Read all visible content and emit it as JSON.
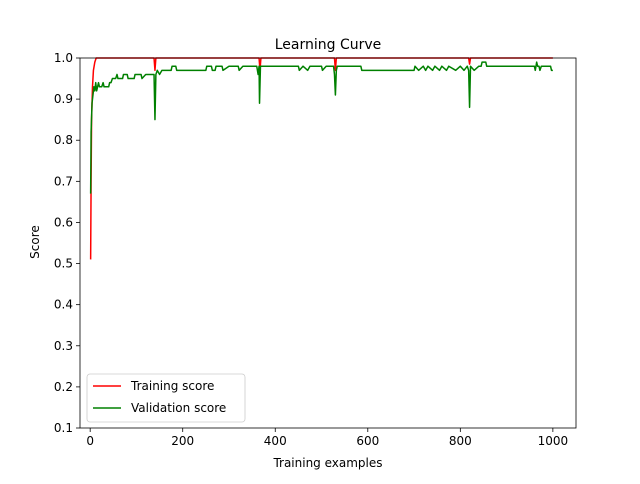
{
  "chart_data": {
    "type": "line",
    "title": "Learning Curve",
    "xlabel": "Training examples",
    "ylabel": "Score",
    "xlim": [
      -22,
      1050
    ],
    "ylim": [
      0.1,
      1.0
    ],
    "xticks": [
      0,
      200,
      400,
      600,
      800,
      1000
    ],
    "yticks": [
      0.1,
      0.2,
      0.3,
      0.4,
      0.5,
      0.6,
      0.7,
      0.8,
      0.9,
      1.0
    ],
    "grid": false,
    "legend_position": "lower-left",
    "series": [
      {
        "name": "Training score",
        "color": "#ff0000",
        "points": [
          [
            1,
            0.51
          ],
          [
            2,
            0.7
          ],
          [
            3,
            0.85
          ],
          [
            5,
            0.93
          ],
          [
            7,
            0.97
          ],
          [
            10,
            0.99
          ],
          [
            13,
            1.0
          ],
          [
            138,
            1.0
          ],
          [
            140,
            0.97
          ],
          [
            142,
            1.0
          ],
          [
            365,
            1.0
          ],
          [
            367,
            0.97
          ],
          [
            369,
            1.0
          ],
          [
            528,
            1.0
          ],
          [
            530,
            0.97
          ],
          [
            532,
            1.0
          ],
          [
            818,
            1.0
          ],
          [
            820,
            0.985
          ],
          [
            822,
            1.0
          ],
          [
            1000,
            1.0
          ]
        ]
      },
      {
        "name": "Validation score",
        "color": "#008000",
        "points": [
          [
            1,
            0.67
          ],
          [
            2,
            0.82
          ],
          [
            4,
            0.89
          ],
          [
            6,
            0.91
          ],
          [
            8,
            0.93
          ],
          [
            10,
            0.92
          ],
          [
            12,
            0.94
          ],
          [
            14,
            0.92
          ],
          [
            16,
            0.93
          ],
          [
            18,
            0.94
          ],
          [
            20,
            0.93
          ],
          [
            25,
            0.93
          ],
          [
            28,
            0.94
          ],
          [
            30,
            0.93
          ],
          [
            40,
            0.93
          ],
          [
            42,
            0.94
          ],
          [
            45,
            0.94
          ],
          [
            48,
            0.95
          ],
          [
            55,
            0.95
          ],
          [
            58,
            0.96
          ],
          [
            60,
            0.95
          ],
          [
            70,
            0.95
          ],
          [
            72,
            0.96
          ],
          [
            80,
            0.96
          ],
          [
            82,
            0.95
          ],
          [
            95,
            0.95
          ],
          [
            97,
            0.96
          ],
          [
            110,
            0.96
          ],
          [
            112,
            0.95
          ],
          [
            120,
            0.96
          ],
          [
            135,
            0.96
          ],
          [
            138,
            0.96
          ],
          [
            140,
            0.85
          ],
          [
            142,
            0.96
          ],
          [
            145,
            0.97
          ],
          [
            150,
            0.96
          ],
          [
            155,
            0.97
          ],
          [
            175,
            0.97
          ],
          [
            177,
            0.98
          ],
          [
            185,
            0.98
          ],
          [
            187,
            0.97
          ],
          [
            250,
            0.97
          ],
          [
            252,
            0.98
          ],
          [
            262,
            0.98
          ],
          [
            264,
            0.97
          ],
          [
            270,
            0.97
          ],
          [
            272,
            0.98
          ],
          [
            285,
            0.98
          ],
          [
            287,
            0.97
          ],
          [
            300,
            0.98
          ],
          [
            320,
            0.98
          ],
          [
            322,
            0.97
          ],
          [
            330,
            0.98
          ],
          [
            360,
            0.98
          ],
          [
            363,
            0.96
          ],
          [
            365,
            0.98
          ],
          [
            366,
            0.89
          ],
          [
            368,
            0.98
          ],
          [
            380,
            0.98
          ],
          [
            450,
            0.98
          ],
          [
            452,
            0.97
          ],
          [
            460,
            0.98
          ],
          [
            470,
            0.97
          ],
          [
            475,
            0.98
          ],
          [
            500,
            0.98
          ],
          [
            502,
            0.97
          ],
          [
            510,
            0.98
          ],
          [
            526,
            0.98
          ],
          [
            528,
            0.96
          ],
          [
            530,
            0.91
          ],
          [
            532,
            0.97
          ],
          [
            534,
            0.98
          ],
          [
            585,
            0.98
          ],
          [
            587,
            0.97
          ],
          [
            700,
            0.97
          ],
          [
            702,
            0.98
          ],
          [
            710,
            0.97
          ],
          [
            720,
            0.98
          ],
          [
            725,
            0.97
          ],
          [
            730,
            0.98
          ],
          [
            740,
            0.97
          ],
          [
            745,
            0.98
          ],
          [
            755,
            0.97
          ],
          [
            760,
            0.98
          ],
          [
            770,
            0.97
          ],
          [
            775,
            0.98
          ],
          [
            790,
            0.97
          ],
          [
            800,
            0.98
          ],
          [
            808,
            0.97
          ],
          [
            815,
            0.98
          ],
          [
            818,
            0.97
          ],
          [
            820,
            0.88
          ],
          [
            822,
            0.98
          ],
          [
            830,
            0.97
          ],
          [
            840,
            0.98
          ],
          [
            845,
            0.98
          ],
          [
            847,
            0.99
          ],
          [
            855,
            0.99
          ],
          [
            857,
            0.98
          ],
          [
            960,
            0.98
          ],
          [
            962,
            0.97
          ],
          [
            965,
            0.99
          ],
          [
            967,
            0.98
          ],
          [
            970,
            0.98
          ],
          [
            972,
            0.97
          ],
          [
            975,
            0.98
          ],
          [
            995,
            0.98
          ],
          [
            997,
            0.97
          ],
          [
            1000,
            0.97
          ]
        ]
      }
    ]
  }
}
